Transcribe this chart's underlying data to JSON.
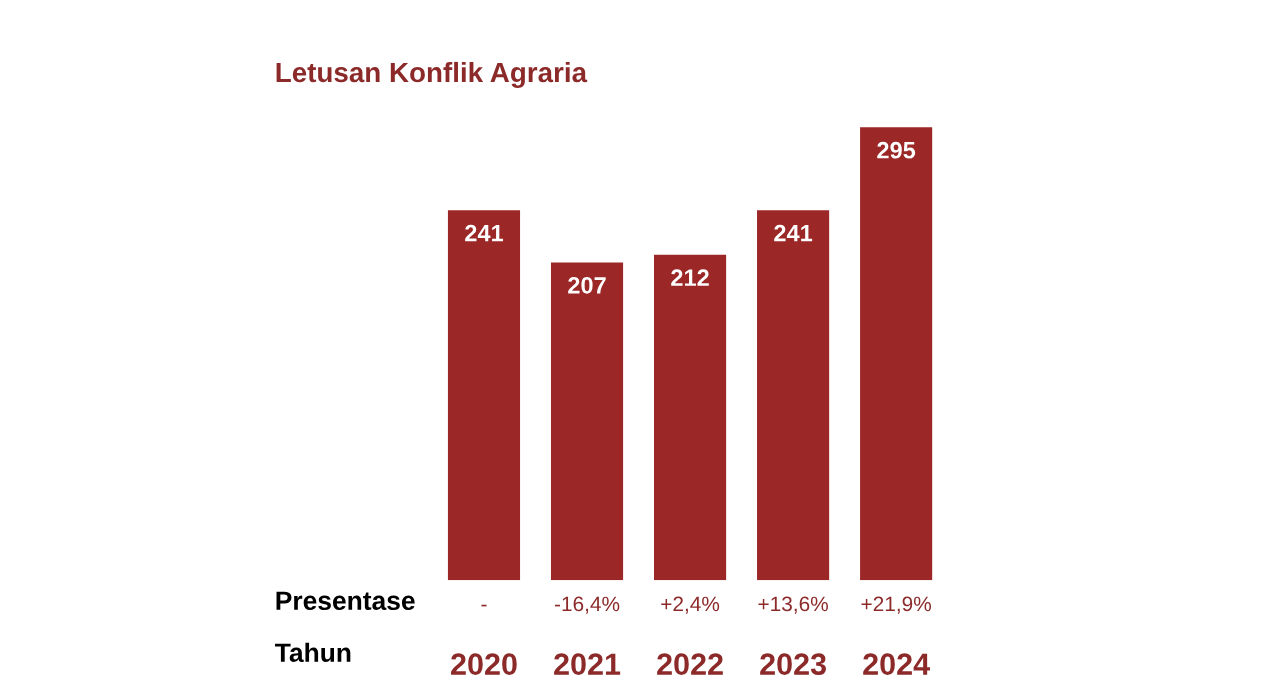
{
  "chart_data": {
    "type": "bar",
    "title": "Letusan Konflik Agraria",
    "categories": [
      "2020",
      "2021",
      "2022",
      "2023",
      "2024"
    ],
    "values": [
      241,
      207,
      212,
      241,
      295
    ],
    "color": "#9b2727",
    "tick_labels": "x",
    "data_labels": true,
    "annotations": [
      "Presentase",
      "Tahun",
      "-",
      "-16,4%",
      "+2,4%",
      "+13,6%",
      "+21,9%"
    ]
  }
}
